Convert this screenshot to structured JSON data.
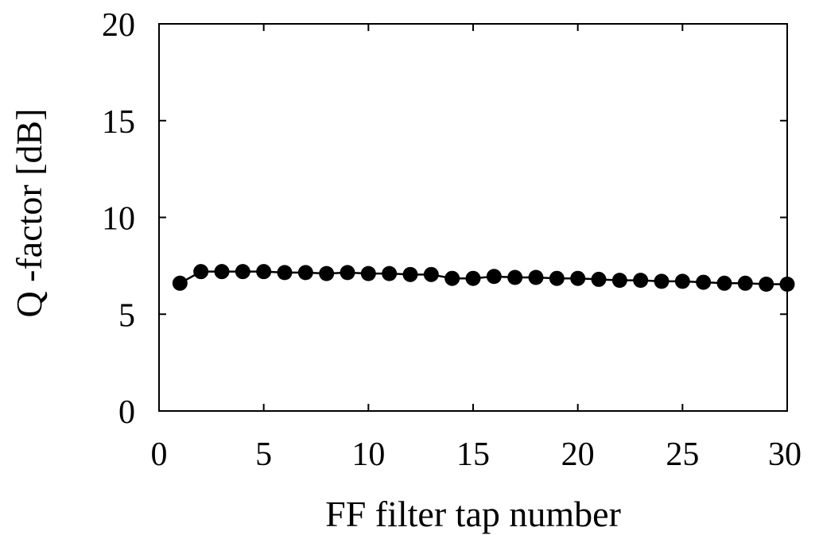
{
  "chart_data": {
    "type": "line",
    "xlabel": "FF filter tap number",
    "ylabel": "Q -factor [dB]",
    "xlim": [
      0,
      30
    ],
    "ylim": [
      0,
      20
    ],
    "xticks": [
      "0",
      "5",
      "10",
      "15",
      "20",
      "25",
      "30"
    ],
    "yticks": [
      "0",
      "5",
      "10",
      "15",
      "20"
    ],
    "grid": false,
    "marker": "filled-circle",
    "line_color": "#000000",
    "series": [
      {
        "x": [
          1,
          2,
          3,
          4,
          5,
          6,
          7,
          8,
          9,
          10,
          11,
          12,
          13,
          14,
          15,
          16,
          17,
          18,
          19,
          20,
          21,
          22,
          23,
          24,
          25,
          26,
          27,
          28,
          29,
          30
        ],
        "values": [
          6.6,
          7.2,
          7.2,
          7.2,
          7.2,
          7.15,
          7.15,
          7.1,
          7.15,
          7.1,
          7.1,
          7.05,
          7.05,
          6.85,
          6.85,
          6.95,
          6.9,
          6.9,
          6.85,
          6.85,
          6.8,
          6.75,
          6.75,
          6.7,
          6.7,
          6.65,
          6.6,
          6.6,
          6.55,
          6.55
        ]
      }
    ]
  }
}
